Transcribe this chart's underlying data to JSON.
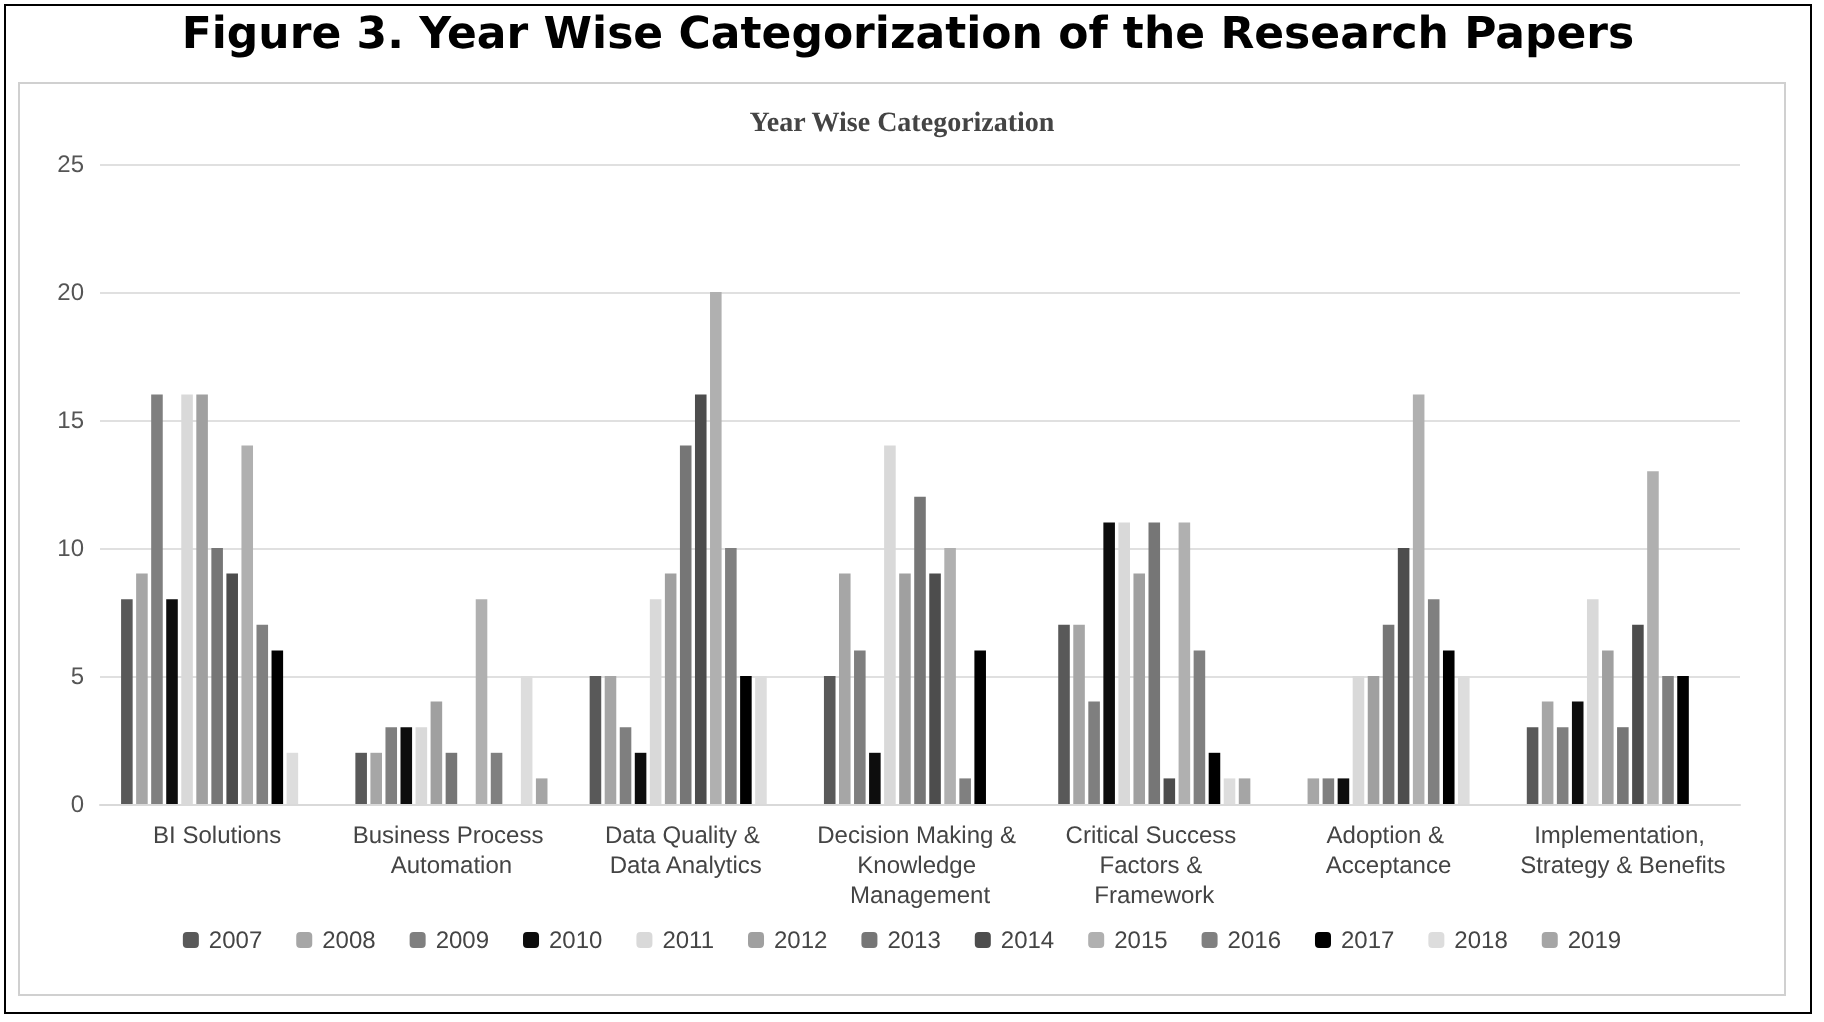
{
  "chart_data": {
    "type": "bar",
    "title": "Figure 3. Year Wise Categorization of the Research Papers",
    "subtitle": "Year Wise Categorization",
    "categories": [
      "BI Solutions",
      "Business Process Automation",
      "Data Quality & Data Analytics",
      "Decision Making & Knowledge Management",
      "Critical Success Factors & Framework",
      "Adoption & Acceptance",
      "Implementation, Strategy & Benefits"
    ],
    "series": [
      {
        "name": "2007",
        "color": "#595959",
        "values": [
          8,
          2,
          5,
          5,
          7,
          0,
          3
        ]
      },
      {
        "name": "2008",
        "color": "#a6a6a6",
        "values": [
          9,
          2,
          5,
          9,
          7,
          1,
          4
        ]
      },
      {
        "name": "2009",
        "color": "#7f7f7f",
        "values": [
          16,
          3,
          3,
          6,
          4,
          1,
          3
        ]
      },
      {
        "name": "2010",
        "color": "#0d0d0d",
        "values": [
          8,
          3,
          2,
          2,
          11,
          1,
          4
        ]
      },
      {
        "name": "2011",
        "color": "#d9d9d9",
        "values": [
          16,
          3,
          8,
          14,
          11,
          5,
          8
        ]
      },
      {
        "name": "2012",
        "color": "#a0a0a0",
        "values": [
          16,
          4,
          9,
          9,
          9,
          5,
          6
        ]
      },
      {
        "name": "2013",
        "color": "#767676",
        "values": [
          10,
          2,
          14,
          12,
          11,
          7,
          3
        ]
      },
      {
        "name": "2014",
        "color": "#4d4d4d",
        "values": [
          9,
          0,
          16,
          9,
          1,
          10,
          7
        ]
      },
      {
        "name": "2015",
        "color": "#b0b0b0",
        "values": [
          14,
          8,
          20,
          10,
          11,
          16,
          13
        ]
      },
      {
        "name": "2016",
        "color": "#808080",
        "values": [
          7,
          2,
          10,
          1,
          6,
          8,
          5
        ]
      },
      {
        "name": "2017",
        "color": "#000000",
        "values": [
          6,
          0,
          5,
          6,
          2,
          6,
          5
        ]
      },
      {
        "name": "2018",
        "color": "#dddddd",
        "values": [
          2,
          5,
          5,
          0,
          1,
          5,
          0
        ]
      },
      {
        "name": "2019",
        "color": "#a5a5a5",
        "values": [
          0,
          1,
          0,
          0,
          1,
          0,
          0
        ]
      }
    ],
    "ylim": [
      0,
      25
    ],
    "yticks": [
      0,
      5,
      10,
      15,
      20,
      25
    ],
    "grid": "y",
    "legend": "bottom"
  }
}
